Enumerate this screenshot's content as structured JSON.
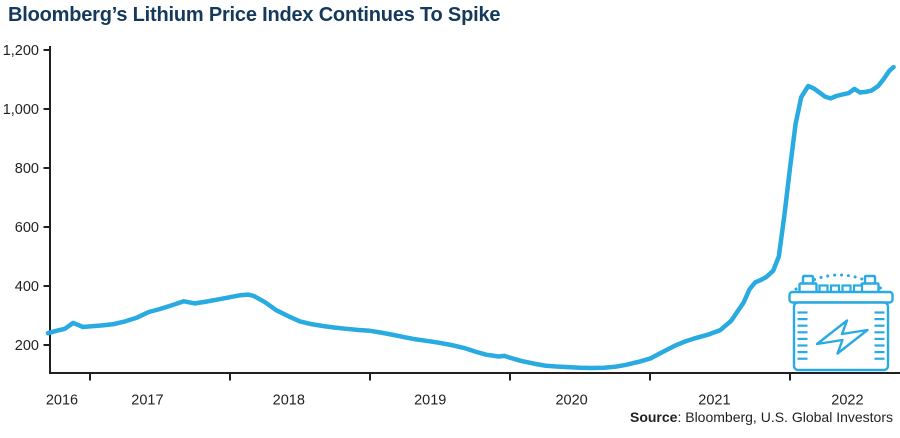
{
  "title": "Bloomberg’s Lithium Price Index Continues To Spike",
  "source": {
    "bold": "Source",
    "rest": ": Bloomberg, U.S. Global Investors"
  },
  "colors": {
    "line": "#29ABE2",
    "icon": "#29ABE2",
    "title": "#14395B",
    "axis": "#231F20",
    "background": "#FFFFFF"
  },
  "chart_data": {
    "type": "line",
    "title": "Bloomberg’s Lithium Price Index Continues To Spike",
    "xlabel": "",
    "ylabel": "",
    "grid": false,
    "legend": "none",
    "xlim": [
      2016.7,
      2022.78
    ],
    "ylim": [
      100,
      1200
    ],
    "y_ticks": [
      200,
      400,
      600,
      800,
      1000,
      1200
    ],
    "x_ticks": [
      2017,
      2018,
      2019,
      2020,
      2021,
      2022
    ],
    "x_labels": [
      {
        "label": "2016",
        "t": 2016.8
      },
      {
        "label": "2017",
        "t": 2017.41
      },
      {
        "label": "2018",
        "t": 2018.42
      },
      {
        "label": "2019",
        "t": 2019.43
      },
      {
        "label": "2020",
        "t": 2020.44
      },
      {
        "label": "2021",
        "t": 2021.46
      },
      {
        "label": "2022",
        "t": 2022.41
      }
    ],
    "series": [
      {
        "name": "Bloomberg Lithium Price Index",
        "points": [
          [
            2016.7,
            240
          ],
          [
            2016.76,
            248
          ],
          [
            2016.82,
            255
          ],
          [
            2016.88,
            275
          ],
          [
            2016.95,
            261
          ],
          [
            2017.0,
            263
          ],
          [
            2017.08,
            266
          ],
          [
            2017.17,
            271
          ],
          [
            2017.25,
            280
          ],
          [
            2017.33,
            292
          ],
          [
            2017.42,
            312
          ],
          [
            2017.5,
            322
          ],
          [
            2017.58,
            334
          ],
          [
            2017.67,
            348
          ],
          [
            2017.75,
            341
          ],
          [
            2017.83,
            347
          ],
          [
            2017.92,
            355
          ],
          [
            2018.0,
            362
          ],
          [
            2018.08,
            369
          ],
          [
            2018.13,
            371
          ],
          [
            2018.17,
            366
          ],
          [
            2018.25,
            345
          ],
          [
            2018.33,
            318
          ],
          [
            2018.42,
            297
          ],
          [
            2018.5,
            280
          ],
          [
            2018.58,
            271
          ],
          [
            2018.67,
            264
          ],
          [
            2018.75,
            259
          ],
          [
            2018.83,
            255
          ],
          [
            2018.92,
            251
          ],
          [
            2019.0,
            248
          ],
          [
            2019.08,
            242
          ],
          [
            2019.17,
            234
          ],
          [
            2019.25,
            226
          ],
          [
            2019.33,
            219
          ],
          [
            2019.42,
            213
          ],
          [
            2019.5,
            207
          ],
          [
            2019.58,
            200
          ],
          [
            2019.67,
            190
          ],
          [
            2019.75,
            178
          ],
          [
            2019.83,
            167
          ],
          [
            2019.92,
            161
          ],
          [
            2019.96,
            163
          ],
          [
            2020.0,
            157
          ],
          [
            2020.08,
            146
          ],
          [
            2020.17,
            137
          ],
          [
            2020.25,
            130
          ],
          [
            2020.33,
            127
          ],
          [
            2020.42,
            125
          ],
          [
            2020.5,
            123
          ],
          [
            2020.58,
            122
          ],
          [
            2020.67,
            123
          ],
          [
            2020.75,
            126
          ],
          [
            2020.83,
            133
          ],
          [
            2020.92,
            143
          ],
          [
            2021.0,
            154
          ],
          [
            2021.08,
            174
          ],
          [
            2021.17,
            196
          ],
          [
            2021.25,
            212
          ],
          [
            2021.33,
            224
          ],
          [
            2021.42,
            236
          ],
          [
            2021.5,
            250
          ],
          [
            2021.58,
            282
          ],
          [
            2021.67,
            345
          ],
          [
            2021.71,
            388
          ],
          [
            2021.75,
            412
          ],
          [
            2021.79,
            420
          ],
          [
            2021.83,
            430
          ],
          [
            2021.88,
            452
          ],
          [
            2021.92,
            500
          ],
          [
            2021.96,
            640
          ],
          [
            2022.0,
            800
          ],
          [
            2022.04,
            950
          ],
          [
            2022.08,
            1040
          ],
          [
            2022.13,
            1078
          ],
          [
            2022.17,
            1070
          ],
          [
            2022.21,
            1056
          ],
          [
            2022.25,
            1042
          ],
          [
            2022.29,
            1036
          ],
          [
            2022.33,
            1044
          ],
          [
            2022.38,
            1050
          ],
          [
            2022.42,
            1054
          ],
          [
            2022.46,
            1068
          ],
          [
            2022.5,
            1056
          ],
          [
            2022.54,
            1058
          ],
          [
            2022.58,
            1062
          ],
          [
            2022.63,
            1078
          ],
          [
            2022.67,
            1102
          ],
          [
            2022.71,
            1130
          ],
          [
            2022.74,
            1142
          ]
        ]
      }
    ],
    "annotations": {
      "icon": "battery-icon",
      "icon_description": "outlined car battery with lightning bolt and dotted arc above terminals"
    }
  }
}
